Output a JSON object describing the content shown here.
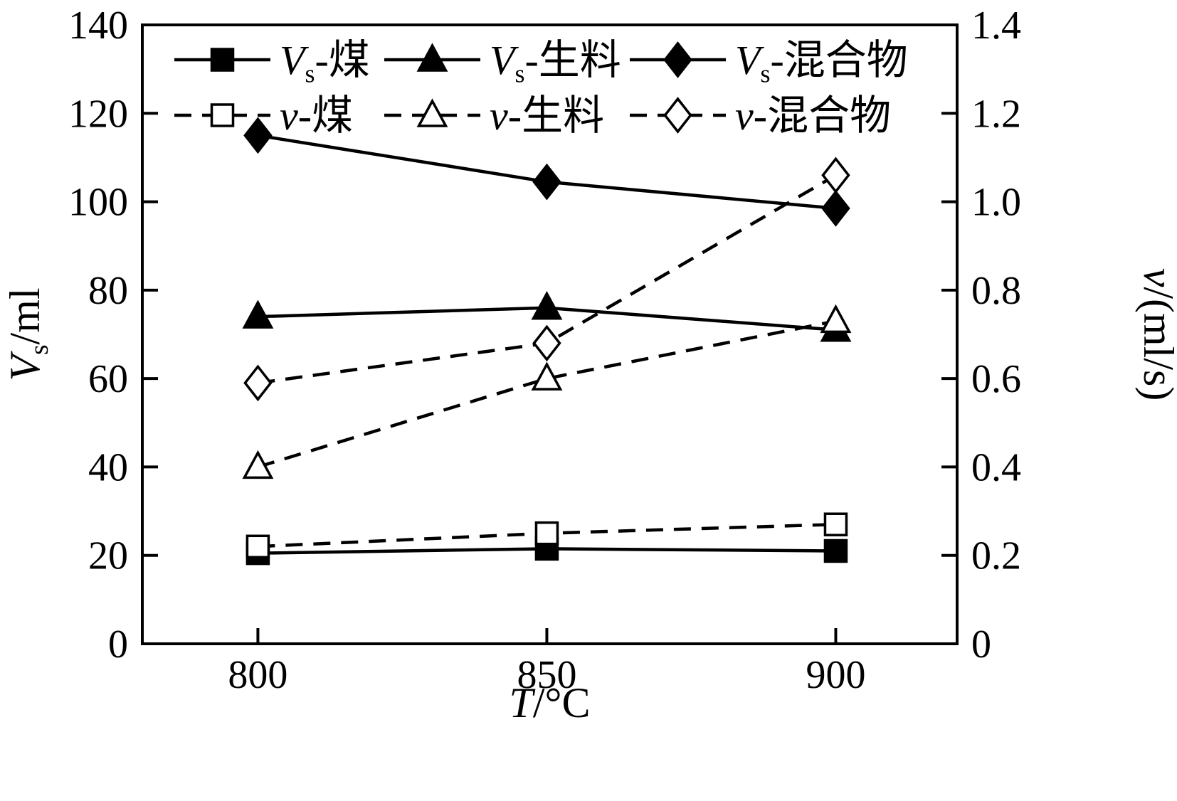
{
  "chart_data": {
    "type": "line",
    "x": [
      800,
      850,
      900
    ],
    "x_range": [
      780,
      921
    ],
    "x_tick_labels": [
      "800",
      "850",
      "900"
    ],
    "xlabel": "T/°C",
    "xlabel_parts": {
      "italic": "T",
      "sub": "",
      "rest": "/°C"
    },
    "left_axis": {
      "label": "Vs/ml",
      "label_parts": {
        "italic": "V",
        "sub": "s",
        "rest": "/ml"
      },
      "range": [
        0,
        140
      ],
      "ticks": [
        0,
        20,
        40,
        60,
        80,
        100,
        120,
        140
      ]
    },
    "right_axis": {
      "label": "v/(ml/s)",
      "label_parts": {
        "italic": "v",
        "sub": "",
        "rest": "/(ml/s)"
      },
      "range": [
        0,
        1.4
      ],
      "ticks": [
        0,
        0.2,
        0.4,
        0.6,
        0.8,
        1.0,
        1.2,
        1.4
      ]
    },
    "grid": false,
    "legend_position": "top-inside",
    "colors": {
      "foreground": "#000000",
      "background": "#ffffff"
    },
    "series": [
      {
        "name": "Vs-煤",
        "label_parts": {
          "italic": "V",
          "sub": "s",
          "rest": "-煤"
        },
        "axis": "left",
        "line": "solid",
        "marker": "square",
        "marker_fill": "filled",
        "values": [
          20.5,
          21.5,
          21
        ]
      },
      {
        "name": "Vs-生料",
        "label_parts": {
          "italic": "V",
          "sub": "s",
          "rest": "-生料"
        },
        "axis": "left",
        "line": "solid",
        "marker": "triangle",
        "marker_fill": "filled",
        "values": [
          74,
          76,
          71
        ]
      },
      {
        "name": "Vs-混合物",
        "label_parts": {
          "italic": "V",
          "sub": "s",
          "rest": "-混合物"
        },
        "axis": "left",
        "line": "solid",
        "marker": "diamond",
        "marker_fill": "filled",
        "values": [
          115,
          104.5,
          98.5
        ]
      },
      {
        "name": "v-煤",
        "label_parts": {
          "italic": "v",
          "sub": "",
          "rest": "-煤"
        },
        "axis": "right",
        "line": "dashed",
        "marker": "square",
        "marker_fill": "open",
        "values": [
          0.22,
          0.25,
          0.27
        ]
      },
      {
        "name": "v-生料",
        "label_parts": {
          "italic": "v",
          "sub": "",
          "rest": "-生料"
        },
        "axis": "right",
        "line": "dashed",
        "marker": "triangle",
        "marker_fill": "open",
        "values": [
          0.4,
          0.6,
          0.73
        ]
      },
      {
        "name": "v-混合物",
        "label_parts": {
          "italic": "v",
          "sub": "",
          "rest": "-混合物"
        },
        "axis": "right",
        "line": "dashed",
        "marker": "diamond",
        "marker_fill": "open",
        "values": [
          0.59,
          0.68,
          1.06
        ]
      }
    ]
  }
}
